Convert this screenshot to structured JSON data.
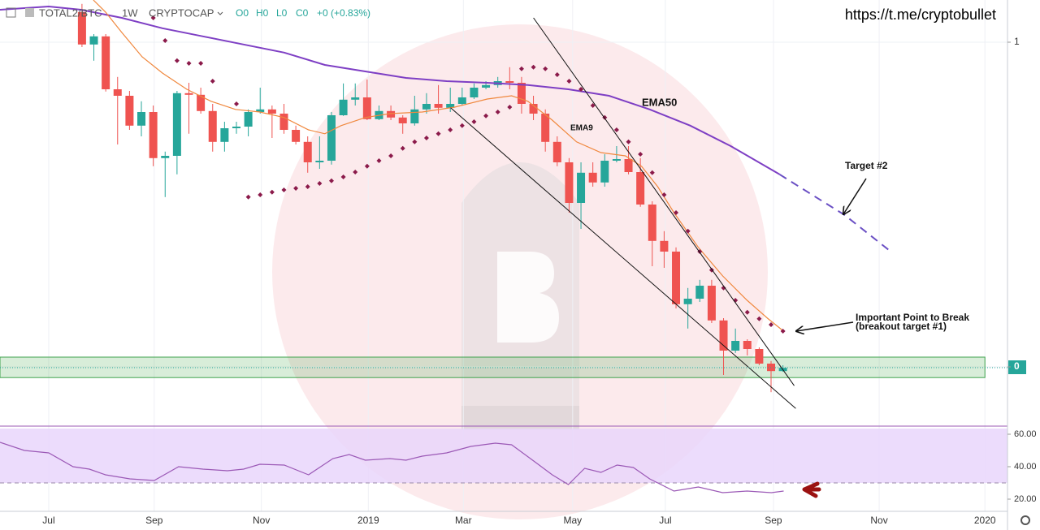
{
  "header": {
    "symbol": "TOTAL2/BTC",
    "interval": "1W",
    "exchange": "CRYPTOCAP",
    "ohlc": [
      "O0",
      "H0",
      "L0",
      "C0",
      "+0 (+0.83%)"
    ],
    "link": "https://t.me/cryptobullet"
  },
  "chart_data": [
    {
      "type": "candlestick",
      "categories": [
        null,
        null,
        null,
        null,
        null,
        null,
        null,
        null,
        null,
        null,
        null,
        null,
        null,
        null,
        null,
        null,
        null,
        null,
        null,
        null,
        null,
        null,
        null,
        null,
        null,
        null,
        null,
        null,
        null,
        null,
        null,
        null,
        null,
        null,
        null,
        null,
        null,
        null,
        null,
        null,
        null,
        null,
        null,
        null,
        null,
        null,
        null,
        null,
        null,
        null,
        null,
        null,
        null,
        null,
        null,
        null,
        null,
        null,
        null,
        null
      ],
      "open": [
        1.093,
        0.993,
        1.018,
        0.855,
        0.835,
        0.743,
        0.785,
        0.643,
        0.65,
        0.843,
        0.838,
        0.788,
        0.693,
        0.735,
        0.74,
        0.785,
        0.793,
        0.78,
        0.73,
        0.693,
        0.63,
        0.635,
        0.775,
        0.823,
        0.83,
        0.763,
        0.788,
        0.768,
        0.75,
        0.793,
        0.81,
        0.798,
        0.81,
        0.83,
        0.86,
        0.868,
        0.88,
        0.875,
        0.81,
        0.78,
        0.693,
        0.63,
        0.505,
        0.598,
        0.568,
        0.635,
        0.64,
        0.6,
        0.5,
        0.388,
        0.355,
        0.193,
        0.21,
        0.25,
        0.143,
        0.05,
        0.08,
        0.055,
        0.01,
        -0.013
      ],
      "high": [
        1.118,
        1.025,
        1.025,
        0.893,
        0.85,
        0.818,
        0.805,
        0.663,
        0.85,
        0.875,
        0.86,
        0.81,
        0.755,
        0.755,
        0.793,
        0.86,
        0.805,
        0.81,
        0.743,
        0.71,
        0.71,
        0.785,
        0.873,
        0.873,
        0.885,
        0.805,
        0.805,
        0.775,
        0.835,
        0.843,
        0.868,
        0.86,
        0.86,
        0.873,
        0.88,
        0.893,
        0.923,
        0.893,
        0.835,
        0.793,
        0.71,
        0.643,
        0.63,
        0.63,
        0.655,
        0.68,
        0.68,
        0.643,
        0.51,
        0.418,
        0.368,
        0.243,
        0.268,
        0.268,
        0.15,
        0.118,
        0.085,
        0.06,
        0.018,
        0.005
      ],
      "low": [
        0.985,
        0.943,
        0.848,
        0.685,
        0.73,
        0.71,
        0.618,
        0.523,
        0.593,
        0.718,
        0.78,
        0.663,
        0.663,
        0.718,
        0.71,
        0.78,
        0.705,
        0.718,
        0.685,
        0.598,
        0.61,
        0.623,
        0.773,
        0.805,
        0.76,
        0.76,
        0.76,
        0.718,
        0.743,
        0.78,
        0.78,
        0.785,
        0.805,
        0.825,
        0.855,
        0.86,
        0.855,
        0.78,
        0.76,
        0.663,
        0.618,
        0.475,
        0.425,
        0.555,
        0.555,
        0.63,
        0.593,
        0.493,
        0.31,
        0.305,
        0.18,
        0.118,
        0.2,
        0.135,
        -0.025,
        0.043,
        0.035,
        0.005,
        -0.078,
        -0.015
      ],
      "close": [
        0.993,
        1.018,
        0.855,
        0.835,
        0.743,
        0.785,
        0.643,
        0.65,
        0.843,
        0.838,
        0.788,
        0.693,
        0.735,
        0.74,
        0.785,
        0.793,
        0.78,
        0.73,
        0.693,
        0.63,
        0.635,
        0.775,
        0.823,
        0.83,
        0.763,
        0.788,
        0.768,
        0.75,
        0.793,
        0.81,
        0.798,
        0.81,
        0.83,
        0.86,
        0.868,
        0.88,
        0.875,
        0.81,
        0.78,
        0.693,
        0.63,
        0.505,
        0.598,
        0.568,
        0.635,
        0.64,
        0.6,
        0.5,
        0.388,
        0.355,
        0.193,
        0.21,
        0.25,
        0.143,
        0.05,
        0.08,
        0.055,
        0.01,
        -0.013,
        -0.003
      ],
      "up_color": "#26a69a",
      "down_color": "#ef5350",
      "series": [
        {
          "name": "EMA50",
          "color": "#7e3fc4",
          "x": [
            -6.9,
            -2.8,
            -0.07,
            3.35,
            6.77,
            10.18,
            13.6,
            17.02,
            20.44,
            23.85,
            27.27,
            30.69,
            34.11,
            37.53,
            40.94,
            44.36,
            47.78,
            51.2,
            54.61,
            58.71
          ],
          "values": [
            1.1,
            1.11,
            1.1,
            1.075,
            1.043,
            1.018,
            0.993,
            0.968,
            0.93,
            0.91,
            0.89,
            0.88,
            0.875,
            0.868,
            0.855,
            0.835,
            0.793,
            0.743,
            0.68,
            0.593
          ]
        },
        {
          "name": "EMA9",
          "color": "#f0883e",
          "x": [
            0.96,
            1.98,
            3.35,
            5.06,
            6.77,
            8.82,
            10.87,
            12.92,
            14.97,
            17.02,
            19.07,
            20.44,
            21.8,
            23.85,
            25.91,
            28.64,
            31.37,
            34.11,
            36.16,
            37.53,
            39.58,
            41.63,
            43.68,
            45.73,
            47.09,
            48.46,
            49.83,
            51.88,
            53.93,
            55.98,
            57.69,
            59.05
          ],
          "values": [
            1.13,
            1.093,
            1.03,
            0.955,
            0.905,
            0.855,
            0.818,
            0.793,
            0.785,
            0.768,
            0.73,
            0.718,
            0.743,
            0.768,
            0.78,
            0.785,
            0.8,
            0.825,
            0.835,
            0.818,
            0.76,
            0.693,
            0.66,
            0.65,
            0.618,
            0.555,
            0.475,
            0.368,
            0.28,
            0.205,
            0.15,
            0.11
          ]
        }
      ],
      "projection": {
        "color": "#6a4fc4",
        "x": [
          58.71,
          61.45,
          64.18,
          68.08
        ],
        "values": [
          0.593,
          0.53,
          0.468,
          0.355
        ]
      },
      "sar": {
        "color": "#8b1a4a",
        "values": [
          null,
          null,
          null,
          null,
          null,
          null,
          1.075,
          1.005,
          0.943,
          0.935,
          0.935,
          0.88,
          null,
          0.81,
          0.523,
          0.53,
          0.538,
          0.545,
          0.55,
          0.555,
          0.565,
          0.573,
          0.585,
          0.6,
          0.618,
          0.635,
          0.65,
          0.673,
          0.693,
          0.705,
          0.718,
          0.73,
          0.743,
          0.755,
          0.773,
          0.785,
          0.8,
          0.918,
          0.923,
          0.918,
          0.9,
          0.88,
          0.855,
          0.805,
          0.768,
          0.73,
          0.693,
          0.655,
          0.598,
          0.53,
          0.475,
          0.418,
          0.355,
          0.298,
          0.243,
          0.205,
          0.168,
          0.148,
          0.13,
          0.11
        ]
      },
      "trendlines": [
        {
          "x": [
            38.0,
            59.95
          ],
          "values": [
            1.075,
            -0.058
          ]
        },
        {
          "x": [
            31.03,
            60.08
          ],
          "values": [
            0.798,
            -0.128
          ]
        }
      ],
      "zone": {
        "x": [
          -6.9,
          76.0
        ],
        "y": [
          -0.033,
          0.03
        ]
      },
      "annotations": [
        "Target #2",
        "Important Point to Break",
        "(breakout target #1)"
      ],
      "xlim": [
        -6.9,
        77.9
      ],
      "xticks": [
        {
          "value": -2.8,
          "label": "Jul"
        },
        {
          "value": 6.08,
          "label": "Sep"
        },
        {
          "value": 15.1,
          "label": "Nov"
        },
        {
          "value": 24.1,
          "label": "2019"
        },
        {
          "value": 32.1,
          "label": "Mar"
        },
        {
          "value": 41.3,
          "label": "May"
        },
        {
          "value": 49.1,
          "label": "Jul"
        },
        {
          "value": 58.2,
          "label": "Sep"
        },
        {
          "value": 67.1,
          "label": "Nov"
        },
        {
          "value": 76.0,
          "label": "2020"
        }
      ],
      "ylim": [
        -0.175,
        1.13
      ],
      "yticks": [
        0,
        1
      ],
      "grid": true
    },
    {
      "type": "line",
      "series": [
        {
          "color": "#9b59b6",
          "x": [
            -6.9,
            -4.85,
            -2.8,
            -0.75,
            0.62,
            1.98,
            4.03,
            6.08,
            8.13,
            10.18,
            12.24,
            13.6,
            14.97,
            17.02,
            19.07,
            21.12,
            22.49,
            23.85,
            25.91,
            27.27,
            28.64,
            30.69,
            32.74,
            34.79,
            36.16,
            38.21,
            39.58,
            40.94,
            42.31,
            43.68,
            45.04,
            46.41,
            47.78,
            49.83,
            51.88,
            53.93,
            55.98,
            58.03,
            59.06
          ],
          "values": [
            55,
            50,
            48.5,
            40,
            38.5,
            35,
            32.5,
            31.5,
            40,
            38.5,
            37.5,
            38.5,
            41.5,
            41,
            35,
            45,
            47.5,
            44,
            45,
            44,
            46.5,
            48.5,
            52.5,
            54.5,
            53.5,
            42.5,
            35,
            29,
            39,
            36.5,
            41,
            39.5,
            32.5,
            25,
            27.5,
            24,
            25,
            24,
            25
          ]
        }
      ],
      "band": [
        30,
        70
      ],
      "band_color": "#e9d6fb",
      "xlim": [
        -6.9,
        77.9
      ],
      "ylim": [
        10,
        63.5
      ],
      "yticks": [
        {
          "value": 60,
          "label": "60.00"
        },
        {
          "value": 40,
          "label": "40.00"
        },
        {
          "value": 20,
          "label": "20.00"
        }
      ]
    }
  ]
}
